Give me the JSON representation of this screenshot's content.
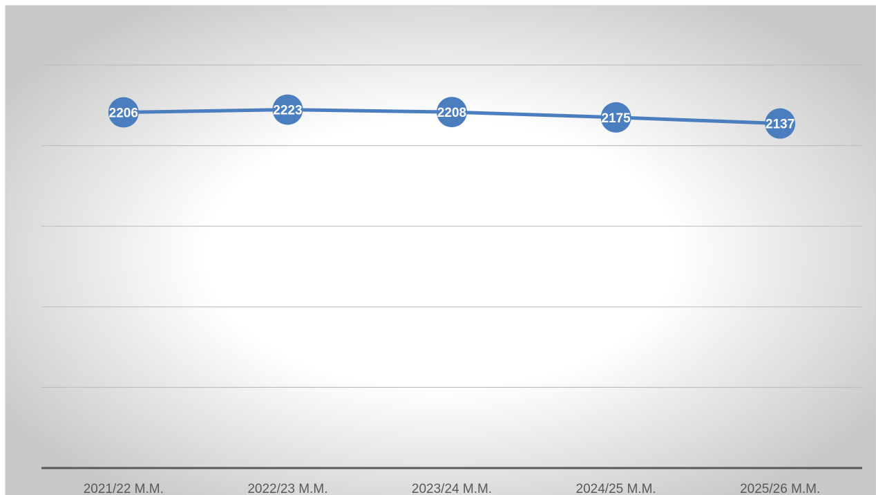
{
  "chart_data": {
    "type": "line",
    "categories": [
      "2021/22 M.M.",
      "2022/23 M.M.",
      "2023/24 M.M.",
      "2024/25 M.M.",
      "2025/26 M.M."
    ],
    "series": [
      {
        "color": "#4a7ebf",
        "values": [
          2206,
          2223,
          2208,
          2175,
          2137
        ]
      }
    ],
    "ylim": [
      0,
      2500
    ],
    "yticks": [
      0,
      500,
      1000,
      1500,
      2000,
      2500
    ],
    "grid": true
  }
}
